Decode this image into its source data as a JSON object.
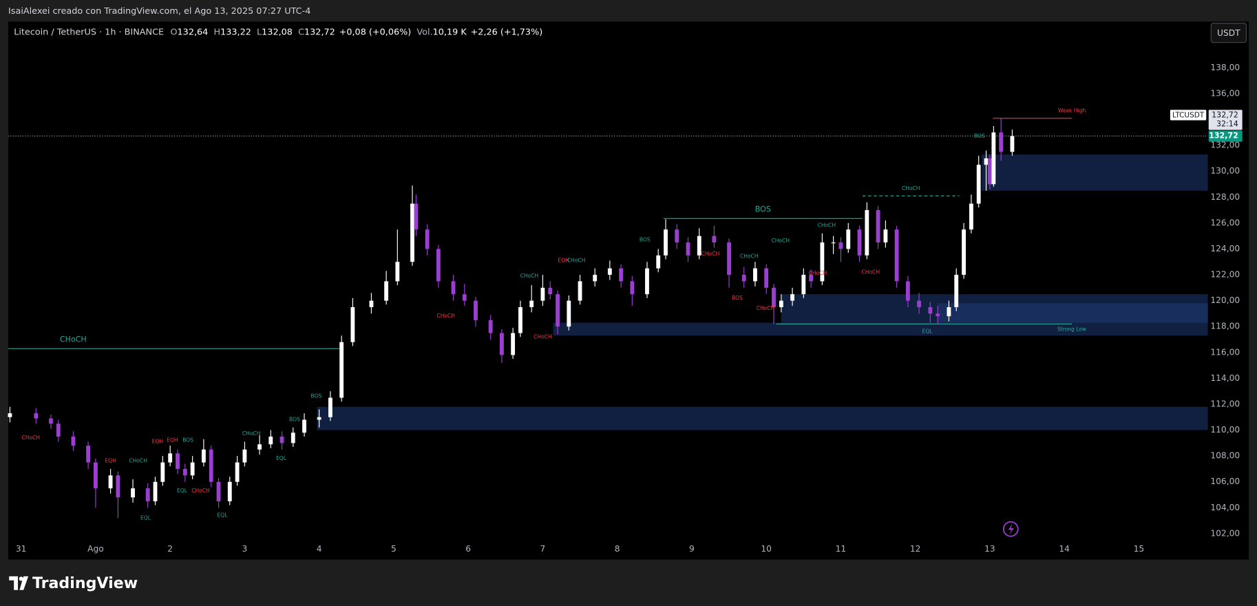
{
  "header": {
    "credit": "IsaiAlexei creado con TradingView.com, el Ago 13, 2025 07:27 UTC-4"
  },
  "legend": {
    "title": "Litecoin / TetherUS · 1h · BINANCE",
    "fields": [
      {
        "label": "O",
        "value": "132,64"
      },
      {
        "label": "H",
        "value": "133,22"
      },
      {
        "label": "L",
        "value": "132,08"
      },
      {
        "label": "C",
        "value": "132,72"
      }
    ],
    "change": "+0,08 (+0,06%)",
    "volume": {
      "label": "Vol.",
      "value": "10,19 K"
    },
    "volume_change": "+2,26 (+1,73%)"
  },
  "price_scale": {
    "currency": "USDT",
    "symbol": "LTCUSDT",
    "last": "132,72",
    "countdown": "32:14"
  },
  "footer": {
    "brand": "TradingView"
  },
  "chart_data": {
    "type": "candlestick",
    "xlim": [
      -0.172,
      15.925
    ],
    "ylim": [
      100,
      141.5
    ],
    "grid": false,
    "xticks": [
      {
        "value": 0,
        "label": "31"
      },
      {
        "value": 1,
        "label": "Ago"
      },
      2,
      3,
      4,
      5,
      6,
      7,
      8,
      9,
      10,
      11,
      12,
      13,
      14,
      15
    ],
    "yticks": [
      {
        "value": 102,
        "label": "102,00"
      },
      {
        "value": 104,
        "label": "104,00"
      },
      {
        "value": 106,
        "label": "106,00"
      },
      {
        "value": 108,
        "label": "108,00"
      },
      {
        "value": 110,
        "label": "110,00"
      },
      {
        "value": 112,
        "label": "112,00"
      },
      {
        "value": 114,
        "label": "114,00"
      },
      {
        "value": 116,
        "label": "116,00"
      },
      {
        "value": 118,
        "label": "118,00"
      },
      {
        "value": 120,
        "label": "120,00"
      },
      {
        "value": 122,
        "label": "122,00"
      },
      {
        "value": 124,
        "label": "124,00"
      },
      {
        "value": 126,
        "label": "126,00"
      },
      {
        "value": 128,
        "label": "128,00"
      },
      {
        "value": 130,
        "label": "130,00"
      },
      {
        "value": 132,
        "label": "132,00"
      },
      {
        "value": 134,
        "label": "134,00"
      },
      {
        "value": 136,
        "label": "136,00"
      },
      {
        "value": 138,
        "label": "138,00"
      }
    ],
    "up_color": "#ffffff",
    "down_color": "#9b3fd1",
    "x": [
      -0.15,
      0.2,
      0.4,
      0.5,
      0.7,
      0.9,
      1.0,
      1.2,
      1.3,
      1.5,
      1.7,
      1.8,
      1.9,
      2.0,
      2.1,
      2.2,
      2.3,
      2.45,
      2.55,
      2.65,
      2.8,
      2.9,
      3.0,
      3.2,
      3.35,
      3.5,
      3.65,
      3.8,
      4.0,
      4.15,
      4.3,
      4.45,
      4.7,
      4.9,
      5.05,
      5.25,
      5.3,
      5.45,
      5.6,
      5.8,
      5.95,
      6.1,
      6.3,
      6.45,
      6.6,
      6.7,
      6.85,
      7.0,
      7.1,
      7.2,
      7.35,
      7.5,
      7.7,
      7.9,
      8.05,
      8.2,
      8.4,
      8.55,
      8.65,
      8.8,
      8.95,
      9.1,
      9.3,
      9.5,
      9.7,
      9.85,
      10.0,
      10.1,
      10.2,
      10.35,
      10.5,
      10.6,
      10.75,
      10.9,
      11.0,
      11.1,
      11.25,
      11.35,
      11.5,
      11.6,
      11.75,
      11.9,
      12.05,
      12.2,
      12.3,
      12.45,
      12.55,
      12.65,
      12.75,
      12.85,
      12.95,
      13.0,
      13.05,
      13.15,
      13.3
    ],
    "open": [
      111.0,
      111.3,
      110.9,
      110.5,
      109.5,
      108.8,
      107.5,
      105.5,
      106.5,
      104.8,
      105.5,
      104.5,
      106.0,
      107.5,
      108.2,
      107.0,
      106.5,
      107.5,
      108.5,
      106.0,
      104.5,
      106.0,
      107.5,
      108.5,
      108.9,
      109.5,
      109.0,
      109.8,
      110.8,
      111.0,
      112.5,
      116.8,
      119.5,
      120.0,
      121.5,
      123.0,
      127.5,
      125.5,
      124.0,
      121.5,
      120.5,
      120.0,
      118.5,
      117.5,
      115.8,
      117.5,
      119.5,
      120.0,
      121.0,
      120.5,
      118.0,
      120.0,
      121.5,
      122.0,
      122.5,
      121.5,
      120.5,
      122.5,
      123.5,
      125.5,
      124.5,
      123.5,
      125.0,
      124.5,
      122.0,
      121.5,
      122.5,
      121.0,
      119.5,
      120.0,
      120.5,
      122.0,
      121.5,
      124.5,
      124.5,
      124.0,
      125.5,
      123.5,
      127.0,
      124.5,
      125.5,
      121.5,
      120.0,
      119.5,
      119.0,
      118.8,
      119.5,
      122.0,
      125.5,
      127.5,
      130.5,
      131.0,
      129.0,
      133.0,
      131.5
    ],
    "high": [
      111.8,
      111.7,
      111.2,
      110.8,
      109.9,
      109.1,
      107.8,
      107.0,
      106.8,
      106.2,
      105.9,
      106.4,
      108.0,
      108.8,
      108.5,
      107.4,
      108.0,
      109.3,
      108.8,
      106.3,
      106.4,
      108.0,
      109.1,
      109.6,
      110.0,
      109.9,
      110.2,
      111.3,
      111.6,
      113.0,
      117.3,
      120.2,
      120.6,
      122.3,
      125.5,
      128.9,
      128.2,
      125.9,
      124.3,
      122.0,
      121.3,
      120.3,
      118.9,
      117.8,
      117.9,
      120.0,
      121.2,
      122.0,
      121.5,
      120.8,
      120.4,
      122.0,
      122.5,
      123.1,
      122.8,
      121.9,
      123.0,
      124.0,
      126.3,
      125.9,
      124.9,
      125.6,
      125.8,
      124.8,
      122.6,
      123.0,
      122.8,
      121.3,
      120.5,
      121.0,
      122.5,
      122.4,
      125.2,
      125.0,
      124.9,
      126.0,
      125.8,
      127.6,
      127.3,
      126.2,
      125.8,
      121.9,
      120.6,
      119.9,
      119.6,
      120.0,
      122.5,
      126.0,
      128.2,
      131.2,
      131.6,
      131.3,
      133.5,
      134.1,
      133.22
    ],
    "low": [
      110.6,
      110.5,
      110.1,
      109.1,
      108.4,
      107.0,
      104.0,
      105.1,
      103.2,
      104.4,
      104.0,
      104.2,
      105.7,
      107.2,
      106.6,
      106.0,
      106.2,
      107.2,
      105.6,
      104.0,
      104.2,
      105.7,
      107.2,
      108.1,
      108.6,
      108.5,
      108.7,
      109.5,
      110.2,
      110.7,
      112.2,
      116.5,
      119.0,
      119.7,
      121.2,
      122.7,
      125.0,
      123.5,
      121.0,
      120.0,
      119.6,
      118.0,
      117.0,
      115.2,
      115.5,
      117.2,
      119.1,
      119.6,
      120.1,
      117.4,
      117.7,
      119.7,
      121.1,
      121.6,
      121.0,
      119.6,
      120.2,
      122.2,
      123.2,
      124.0,
      123.0,
      123.2,
      124.1,
      121.0,
      121.0,
      121.1,
      120.5,
      118.2,
      119.1,
      119.6,
      120.2,
      121.0,
      121.2,
      123.6,
      123.0,
      123.7,
      123.0,
      123.2,
      124.0,
      124.1,
      121.0,
      119.5,
      119.0,
      118.3,
      118.2,
      118.4,
      119.2,
      121.7,
      125.2,
      127.2,
      128.5,
      128.6,
      128.8,
      130.8,
      131.2
    ],
    "close": [
      111.3,
      110.9,
      110.5,
      109.5,
      108.8,
      107.5,
      105.5,
      106.5,
      104.8,
      105.5,
      104.5,
      106.0,
      107.5,
      108.2,
      107.0,
      106.5,
      107.5,
      108.5,
      106.0,
      104.5,
      106.0,
      107.5,
      108.5,
      108.9,
      109.5,
      109.0,
      109.8,
      110.8,
      111.0,
      112.5,
      116.8,
      119.5,
      120.0,
      121.5,
      123.0,
      127.5,
      125.5,
      124.0,
      121.5,
      120.5,
      120.0,
      118.5,
      117.5,
      115.8,
      117.5,
      119.5,
      120.0,
      121.0,
      120.5,
      118.0,
      120.0,
      121.5,
      122.0,
      122.5,
      121.5,
      120.5,
      122.5,
      123.5,
      125.5,
      124.5,
      123.5,
      125.0,
      124.5,
      122.0,
      121.5,
      122.5,
      121.0,
      119.5,
      120.0,
      120.5,
      122.0,
      121.5,
      124.5,
      124.5,
      124.0,
      125.5,
      123.5,
      127.0,
      124.5,
      125.5,
      121.5,
      120.0,
      119.5,
      119.0,
      118.8,
      119.5,
      122.0,
      125.5,
      127.5,
      130.5,
      131.0,
      129.0,
      133.0,
      131.5,
      132.72
    ],
    "last_price": 132.72,
    "last_price_label": "132,72",
    "last_price_color": "#089981",
    "zones": [
      {
        "x0": 3.97,
        "x1": 15.925,
        "y0": 110.0,
        "y1": 111.8,
        "color": "#132347"
      },
      {
        "x0": 7.14,
        "x1": 15.925,
        "y0": 117.3,
        "y1": 118.3,
        "color": "#132347"
      },
      {
        "x0": 10.2,
        "x1": 15.925,
        "y0": 118.2,
        "y1": 120.5,
        "color": "#132347"
      },
      {
        "x0": 12.3,
        "x1": 15.925,
        "y0": 118.3,
        "y1": 119.8,
        "color": "#1a3060"
      },
      {
        "x0": 12.89,
        "x1": 15.925,
        "y0": 128.5,
        "y1": 131.3,
        "color": "#132347"
      }
    ],
    "levels": [
      {
        "label": "CHoCH",
        "x0": -0.172,
        "x1": 4.32,
        "y": 116.3,
        "color": "#26a69a",
        "style": "solid",
        "label_at": "start",
        "label_size": "large"
      },
      {
        "label": "BOS",
        "x0": 8.62,
        "x1": 11.29,
        "y": 126.35,
        "color": "#26a69a",
        "style": "solid",
        "label_at": "middle",
        "label_size": "large"
      },
      {
        "label": "CHoCH",
        "x0": 11.29,
        "x1": 12.59,
        "y": 128.1,
        "color": "#26a69a",
        "style": "dashed",
        "label_at": "middle",
        "label_size": "small"
      },
      {
        "label": "Weak High",
        "x0": 13.04,
        "x1": 14.1,
        "y": 134.1,
        "color": "#f23645",
        "style": "solid",
        "label_at": "end",
        "label_size": "small"
      },
      {
        "label": "Strong Low",
        "x0": 10.13,
        "x1": 14.1,
        "y": 118.2,
        "color": "#26a69a",
        "style": "solid",
        "label_at": "end",
        "label_size": "small",
        "label_side": "below"
      }
    ],
    "annotations": [
      {
        "text": "CHoCH",
        "x": 0.13,
        "y": 109.4,
        "color": "#f23645"
      },
      {
        "text": "EQH",
        "x": 1.2,
        "y": 107.6,
        "color": "#f23645"
      },
      {
        "text": "CHoCH",
        "x": 1.57,
        "y": 107.6,
        "color": "#26a69a"
      },
      {
        "text": "EQH",
        "x": 1.83,
        "y": 109.1,
        "color": "#f23645"
      },
      {
        "text": "EQH",
        "x": 2.03,
        "y": 109.2,
        "color": "#f23645"
      },
      {
        "text": "BOS",
        "x": 2.24,
        "y": 109.2,
        "color": "#26a69a"
      },
      {
        "text": "EQL",
        "x": 1.67,
        "y": 103.2,
        "color": "#26a69a"
      },
      {
        "text": "EQL",
        "x": 2.16,
        "y": 105.3,
        "color": "#26a69a"
      },
      {
        "text": "CHoCH",
        "x": 2.41,
        "y": 105.3,
        "color": "#f23645"
      },
      {
        "text": "EQL",
        "x": 2.7,
        "y": 103.4,
        "color": "#26a69a"
      },
      {
        "text": "CHoCH",
        "x": 3.09,
        "y": 109.7,
        "color": "#26a69a"
      },
      {
        "text": "EQL",
        "x": 3.49,
        "y": 107.8,
        "color": "#26a69a"
      },
      {
        "text": "BOS",
        "x": 3.67,
        "y": 110.8,
        "color": "#26a69a"
      },
      {
        "text": "BOS",
        "x": 3.96,
        "y": 112.6,
        "color": "#26a69a"
      },
      {
        "text": "CHoCH",
        "x": 5.7,
        "y": 118.8,
        "color": "#f23645"
      },
      {
        "text": "CHoCH",
        "x": 6.82,
        "y": 121.9,
        "color": "#26a69a"
      },
      {
        "text": "CHoCH",
        "x": 7.0,
        "y": 117.2,
        "color": "#f23645"
      },
      {
        "text": "EQH",
        "x": 7.28,
        "y": 123.1,
        "color": "#f23645"
      },
      {
        "text": "CHoCH",
        "x": 7.45,
        "y": 123.1,
        "color": "#26a69a"
      },
      {
        "text": "BOS",
        "x": 8.37,
        "y": 124.7,
        "color": "#26a69a"
      },
      {
        "text": "CHoCH",
        "x": 9.25,
        "y": 123.6,
        "color": "#f23645"
      },
      {
        "text": "BOS",
        "x": 9.61,
        "y": 120.2,
        "color": "#f23645"
      },
      {
        "text": "CHoCH",
        "x": 9.77,
        "y": 123.4,
        "color": "#26a69a"
      },
      {
        "text": "CHoCH",
        "x": 9.99,
        "y": 119.4,
        "color": "#f23645"
      },
      {
        "text": "CHoCH",
        "x": 10.19,
        "y": 124.6,
        "color": "#26a69a"
      },
      {
        "text": "CHoCH",
        "x": 10.69,
        "y": 122.1,
        "color": "#f23645"
      },
      {
        "text": "CHoCH",
        "x": 10.81,
        "y": 125.8,
        "color": "#26a69a"
      },
      {
        "text": "CHoCH",
        "x": 11.4,
        "y": 122.2,
        "color": "#f23645"
      },
      {
        "text": "EQL",
        "x": 12.16,
        "y": 117.6,
        "color": "#26a69a"
      },
      {
        "text": "BOS",
        "x": 12.86,
        "y": 132.7,
        "color": "#26a69a"
      }
    ]
  }
}
